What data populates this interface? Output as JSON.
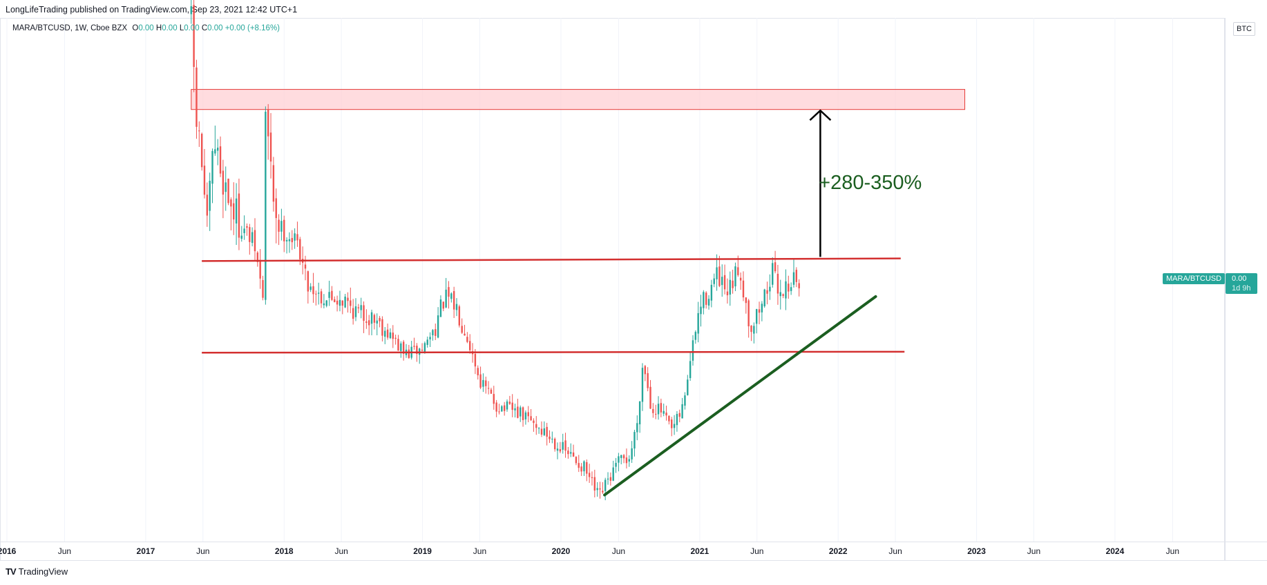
{
  "header": {
    "published_line": "LongLifeTrading published on TradingView.com, Sep 23, 2021 12:42 UTC+1"
  },
  "legend": {
    "symbol": "MARA/BTCUSD, 1W, Cboe BZX",
    "o_label": "O",
    "o_value": "0.00",
    "h_label": "H",
    "h_value": "0.00",
    "l_label": "L",
    "l_value": "0.00",
    "c_label": "C",
    "c_value": "0.00",
    "change": "+0.00 (+8.16%)"
  },
  "price_axis": {
    "currency": "BTC",
    "symbol_tag": "MARA/BTCUSD",
    "last_price": "0.00",
    "countdown": "1d 9h"
  },
  "annotation": {
    "text": "+280-350%"
  },
  "footer": {
    "logo_mark": "TV",
    "brand": "TradingView"
  },
  "colors": {
    "up": "#26a69a",
    "down": "#ef5350",
    "level_line": "#d32f2f",
    "trendline": "#1b5e20",
    "zone_fill": "#ffcdd2",
    "zone_border": "#e53935",
    "arrow": "#000000",
    "grid": "#f0f3fa"
  },
  "chart_data": {
    "type": "candlestick",
    "series_name": "MARA/BTCUSD",
    "interval": "1W",
    "x_range": [
      "2016-01-01",
      "2024-10-15"
    ],
    "y_range": [
      0,
      100
    ],
    "y_scale_note": "relative price level 0-100 (price axis values not printed)",
    "x_ticks": [
      {
        "label": "2016",
        "date": "2016-01-01",
        "year": true
      },
      {
        "label": "Jun",
        "date": "2016-06-01",
        "year": false
      },
      {
        "label": "2017",
        "date": "2017-01-01",
        "year": true
      },
      {
        "label": "Jun",
        "date": "2017-06-01",
        "year": false
      },
      {
        "label": "2018",
        "date": "2018-01-01",
        "year": true
      },
      {
        "label": "Jun",
        "date": "2018-06-01",
        "year": false
      },
      {
        "label": "2019",
        "date": "2019-01-01",
        "year": true
      },
      {
        "label": "Jun",
        "date": "2019-06-01",
        "year": false
      },
      {
        "label": "2020",
        "date": "2020-01-01",
        "year": true
      },
      {
        "label": "Jun",
        "date": "2020-06-01",
        "year": false
      },
      {
        "label": "2021",
        "date": "2021-01-01",
        "year": true
      },
      {
        "label": "Jun",
        "date": "2021-06-01",
        "year": false
      },
      {
        "label": "2022",
        "date": "2022-01-01",
        "year": true
      },
      {
        "label": "Jun",
        "date": "2022-06-01",
        "year": false
      },
      {
        "label": "2023",
        "date": "2023-01-01",
        "year": true
      },
      {
        "label": "Jun",
        "date": "2023-06-01",
        "year": false
      },
      {
        "label": "2024",
        "date": "2024-01-01",
        "year": true
      },
      {
        "label": "Jun",
        "date": "2024-06-01",
        "year": false
      }
    ],
    "price_path": [
      [
        "2017-05-01",
        99
      ],
      [
        "2017-05-08",
        90
      ],
      [
        "2017-05-15",
        80
      ],
      [
        "2017-05-29",
        72
      ],
      [
        "2017-06-12",
        60
      ],
      [
        "2017-07-01",
        76
      ],
      [
        "2017-07-20",
        70
      ],
      [
        "2017-08-15",
        64
      ],
      [
        "2017-09-10",
        60
      ],
      [
        "2017-10-15",
        56
      ],
      [
        "2017-11-06",
        46
      ],
      [
        "2017-11-13",
        82
      ],
      [
        "2017-11-27",
        70
      ],
      [
        "2017-12-15",
        60
      ],
      [
        "2018-01-15",
        58
      ],
      [
        "2018-02-10",
        56
      ],
      [
        "2018-03-01",
        49
      ],
      [
        "2018-04-15",
        46
      ],
      [
        "2018-06-01",
        46
      ],
      [
        "2018-07-15",
        43
      ],
      [
        "2018-09-01",
        42
      ],
      [
        "2018-10-15",
        38
      ],
      [
        "2018-11-15",
        35
      ],
      [
        "2019-01-01",
        36
      ],
      [
        "2019-02-01",
        40
      ],
      [
        "2019-03-01",
        46
      ],
      [
        "2019-04-01",
        44
      ],
      [
        "2019-05-01",
        38
      ],
      [
        "2019-06-01",
        30
      ],
      [
        "2019-07-15",
        25
      ],
      [
        "2019-09-01",
        24
      ],
      [
        "2019-10-15",
        22
      ],
      [
        "2019-12-01",
        19
      ],
      [
        "2020-01-15",
        16
      ],
      [
        "2020-03-01",
        13
      ],
      [
        "2020-04-10",
        7
      ],
      [
        "2020-05-01",
        10
      ],
      [
        "2020-06-01",
        14
      ],
      [
        "2020-07-01",
        15
      ],
      [
        "2020-07-20",
        22
      ],
      [
        "2020-08-05",
        34
      ],
      [
        "2020-08-25",
        25
      ],
      [
        "2020-09-20",
        24
      ],
      [
        "2020-10-20",
        20
      ],
      [
        "2020-11-15",
        24
      ],
      [
        "2020-12-10",
        35
      ],
      [
        "2021-01-01",
        44
      ],
      [
        "2021-02-15",
        50
      ],
      [
        "2021-03-15",
        46
      ],
      [
        "2021-04-15",
        52
      ],
      [
        "2021-05-15",
        40
      ],
      [
        "2021-06-15",
        45
      ],
      [
        "2021-07-10",
        51
      ],
      [
        "2021-08-01",
        47
      ],
      [
        "2021-09-10",
        50
      ],
      [
        "2021-09-20",
        47
      ]
    ],
    "resistance_line": {
      "name": "",
      "start": [
        "2017-05-29",
        53.1
      ],
      "end": [
        "2022-06-15",
        53.6
      ]
    },
    "support_line": {
      "name": "",
      "start": [
        "2017-05-29",
        35.3
      ],
      "end": [
        "2022-06-25",
        35.5
      ]
    },
    "target_zone": {
      "start": "2017-05-01",
      "end": "2022-12-01",
      "y_low": 82.5,
      "y_high": 86.4
    },
    "trendline": {
      "start": [
        "2020-04-25",
        7.7
      ],
      "end": [
        "2022-04-10",
        46.2
      ]
    },
    "arrow": {
      "date": "2021-11-15",
      "y_from": 53.9,
      "y_to": 82.3
    },
    "annotation": {
      "date": "2021-11-20",
      "y": 68,
      "text": "+280-350%"
    },
    "grid": true
  }
}
